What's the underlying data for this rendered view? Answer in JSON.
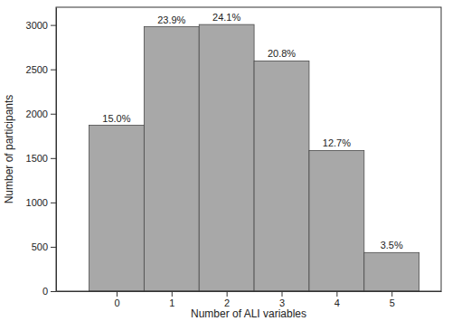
{
  "chart_data": {
    "type": "histogram",
    "x_label": "Number of ALI variables",
    "y_label": "Number of participants",
    "bins": [
      -0.5,
      0.5,
      1.5,
      2.5,
      3.5,
      4.5,
      5.5
    ],
    "values": [
      1870,
      2980,
      3005,
      2595,
      1585,
      435
    ],
    "percent_labels": [
      "15.0%",
      "23.9%",
      "24.1%",
      "20.8%",
      "12.7%",
      "3.5%"
    ],
    "color": "#a8a8a8",
    "xlim": [
      -1.1,
      5.9
    ],
    "xticks": [
      0,
      1,
      2,
      3,
      4,
      5
    ],
    "ylim": [
      0,
      3200
    ],
    "yticks": [
      0,
      500,
      1000,
      1500,
      2000,
      2500,
      3000
    ],
    "grid": false
  }
}
